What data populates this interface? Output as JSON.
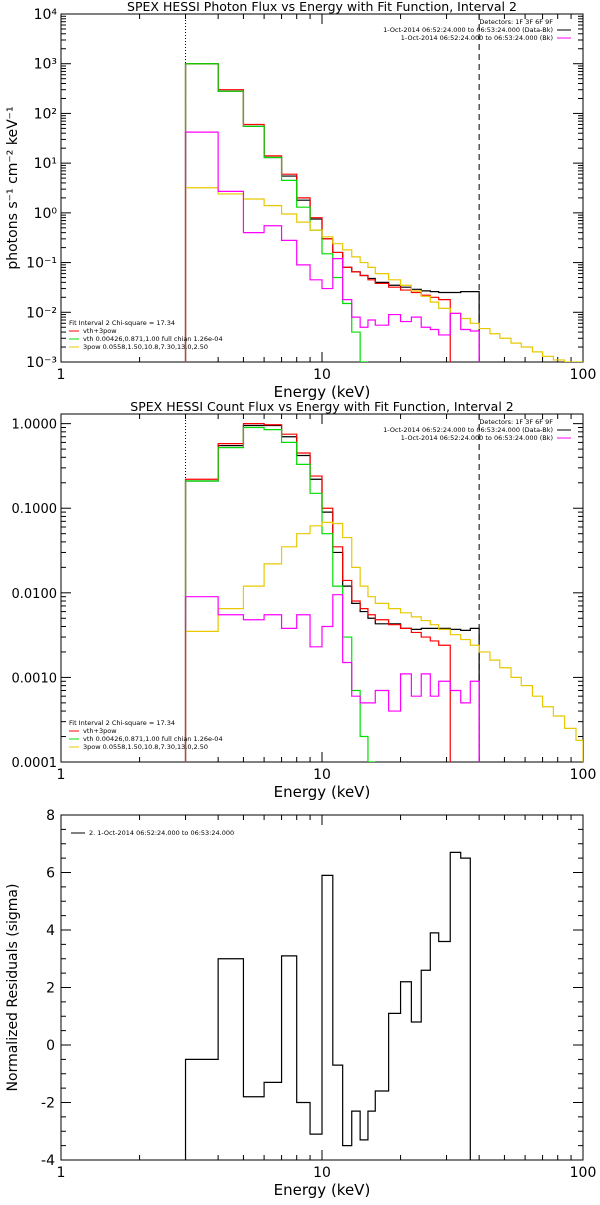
{
  "colors": {
    "total": "#000000",
    "vth_3pow": "#ff0000",
    "vth": "#00dd00",
    "pow": "#e8c800",
    "residual": "#000000",
    "bk": "#ff00ff"
  },
  "chart_data": [
    {
      "type": "line",
      "title": "SPEX HESSI Photon Flux vs Energy with Fit Function, Interval 2",
      "xlabel": "Energy (keV)",
      "ylabel": "photons s⁻¹ cm⁻² keV⁻¹",
      "xscale": "log",
      "yscale": "log",
      "xlim": [
        1,
        100
      ],
      "ylim": [
        0.001,
        10000
      ],
      "xticks": [
        "1",
        "10",
        "100"
      ],
      "yticks": [
        "10⁻³",
        "10⁻²",
        "10⁻¹",
        "10⁰",
        "10¹",
        "10²",
        "10³",
        "10⁴"
      ],
      "vlines": {
        "dotted": 3,
        "dashed": 40
      },
      "legend_top": [
        "Detectors: 1F 3F 6F 9F",
        "1-Oct-2014 06:52:24.000 to 06:53:24.000 (Data-Bk)",
        "1-Oct-2014 06:52:24.000 to 06:53:24.000 (Bk)"
      ],
      "legend_bottom": [
        "Fit Interval  2    Chi-square = 17.34",
        "vth+3pow",
        "vth 0.00426,0.871,1.00  full chian 1.26e-04",
        "3pow 0.0558,1.50,10.8,7.30,13.0,2.50"
      ],
      "edges": [
        3,
        4,
        5,
        6,
        7,
        8,
        9,
        10,
        11,
        12,
        13,
        14,
        15,
        16,
        18,
        20,
        22,
        24,
        26,
        28,
        31,
        34,
        37,
        40,
        44,
        48,
        53,
        58,
        64,
        70,
        77,
        85,
        94,
        100
      ],
      "series": [
        {
          "key": "total",
          "values": [
            1000,
            280,
            55,
            13,
            5.5,
            1.8,
            0.75,
            0.3,
            0.16,
            0.08,
            0.065,
            0.055,
            0.048,
            0.04,
            0.035,
            0.032,
            0.029,
            0.027,
            0.026,
            0.025,
            0.025,
            0.026,
            0.026
          ]
        },
        {
          "key": "vth_3pow",
          "values": [
            1000,
            300,
            60,
            14,
            6,
            2,
            0.8,
            0.3,
            0.16,
            0.08,
            0.065,
            0.055,
            0.045,
            0.038,
            0.032,
            0.028,
            0.025,
            0.022,
            0.02,
            0.018
          ]
        },
        {
          "key": "vth",
          "values": [
            1000,
            280,
            55,
            13,
            4.5,
            1.3,
            0.45,
            0.15,
            0.05,
            0.015,
            0.004,
            0.0008
          ]
        },
        {
          "key": "pow",
          "values": [
            3.2,
            2.4,
            1.9,
            1.4,
            0.95,
            0.65,
            0.45,
            0.33,
            0.24,
            0.18,
            0.13,
            0.1,
            0.08,
            0.06,
            0.045,
            0.035,
            0.027,
            0.021,
            0.016,
            0.012,
            0.0095,
            0.0075,
            0.006,
            0.0047,
            0.0037,
            0.003,
            0.0024,
            0.002,
            0.0016,
            0.0013,
            0.0011,
            0.0009,
            0.0008
          ]
        },
        {
          "key": "bk",
          "values": [
            42,
            2.7,
            0.4,
            0.55,
            0.28,
            0.09,
            0.045,
            0.03,
            0.12,
            0.018,
            0.008,
            0.005,
            0.007,
            0.0055,
            0.009,
            0.0065,
            0.008,
            0.005,
            0.0045,
            0.0035,
            0.0095,
            0.0045,
            0.0042
          ]
        }
      ]
    },
    {
      "type": "line",
      "title": "SPEX HESSI Count Flux vs Energy with Fit Function, Interval 2",
      "xlabel": "Energy (keV)",
      "ylabel": "",
      "xscale": "log",
      "yscale": "log",
      "xlim": [
        1,
        100
      ],
      "ylim": [
        0.0001,
        1.3
      ],
      "xticks": [
        "1",
        "10",
        "100"
      ],
      "yticks": [
        "0.0001",
        "0.0010",
        "0.0100",
        "0.1000",
        "1.0000"
      ],
      "vlines": {
        "dotted": 3,
        "dashed": 40
      },
      "legend_top": [
        "Detectors: 1F 3F 6F 9F",
        "1-Oct-2014 06:52:24.000 to 06:53:24.000 (Data-Bk)",
        "1-Oct-2014 06:52:24.000 to 06:53:24.000 (Bk)"
      ],
      "legend_bottom": [
        "Fit Interval  2    Chi-square = 17.34",
        "vth+3pow",
        "vth 0.00426,0.871,1.00  full chian 1.26e-04",
        "3pow 0.0558,1.50,10.8,7.30,13.0,2.50"
      ],
      "edges": [
        3,
        4,
        5,
        6,
        7,
        8,
        9,
        10,
        11,
        12,
        13,
        14,
        15,
        16,
        18,
        20,
        22,
        24,
        26,
        28,
        31,
        34,
        37,
        40,
        44,
        48,
        53,
        58,
        64,
        70,
        77,
        85,
        94,
        100
      ],
      "series": [
        {
          "key": "total",
          "values": [
            0.21,
            0.55,
            0.95,
            0.95,
            0.7,
            0.42,
            0.22,
            0.09,
            0.03,
            0.012,
            0.0075,
            0.006,
            0.005,
            0.0043,
            0.0043,
            0.0038,
            0.0037,
            0.0038,
            0.0038,
            0.0038,
            0.0037,
            0.0036,
            0.0038
          ]
        },
        {
          "key": "vth_3pow",
          "values": [
            0.22,
            0.58,
            1.0,
            0.97,
            0.75,
            0.45,
            0.24,
            0.1,
            0.035,
            0.014,
            0.008,
            0.0065,
            0.0055,
            0.0048,
            0.0042,
            0.0038,
            0.0034,
            0.003,
            0.0027,
            0.0024
          ]
        },
        {
          "key": "vth",
          "values": [
            0.21,
            0.52,
            0.9,
            0.85,
            0.6,
            0.33,
            0.15,
            0.05,
            0.012,
            0.003,
            0.0007,
            0.0002,
            0.0001
          ]
        },
        {
          "key": "pow",
          "values": [
            0.0035,
            0.0065,
            0.012,
            0.022,
            0.035,
            0.05,
            0.062,
            0.068,
            0.066,
            0.045,
            0.02,
            0.012,
            0.009,
            0.0075,
            0.0065,
            0.0058,
            0.0052,
            0.0047,
            0.0042,
            0.0037,
            0.0032,
            0.0028,
            0.0024,
            0.002,
            0.0016,
            0.0013,
            0.001,
            0.0008,
            0.0006,
            0.00045,
            0.00035,
            0.00025,
            0.00018
          ]
        },
        {
          "key": "bk",
          "values": [
            0.009,
            0.0055,
            0.0048,
            0.0055,
            0.0038,
            0.0055,
            0.0023,
            0.004,
            0.0095,
            0.0015,
            0.0006,
            0.0005,
            0.0005,
            0.0007,
            0.0004,
            0.0011,
            0.0006,
            0.0011,
            0.0006,
            0.0009,
            0.0007,
            0.0005,
            0.0009
          ]
        }
      ]
    },
    {
      "type": "line",
      "title": "",
      "xlabel": "Energy (keV)",
      "ylabel": "Normalized Residuals (sigma)",
      "xscale": "log",
      "yscale": "linear",
      "xlim": [
        1,
        100
      ],
      "ylim": [
        -4,
        8
      ],
      "xticks": [
        "1",
        "10",
        "100"
      ],
      "yticks": [
        "-4",
        "-2",
        "0",
        "2",
        "4",
        "6",
        "8"
      ],
      "legend": "2.  1-Oct-2014 06:52:24.000 to 06:53:24.000",
      "edges": [
        3,
        4,
        5,
        6,
        7,
        8,
        9,
        10,
        11,
        12,
        13,
        14,
        15,
        16,
        18,
        20,
        22,
        24,
        26,
        28,
        31,
        34,
        37,
        40
      ],
      "series": [
        {
          "key": "residual",
          "values": [
            -0.5,
            3.0,
            -1.8,
            -1.3,
            3.1,
            -2.0,
            -3.1,
            5.9,
            -0.7,
            -3.5,
            -2.3,
            -3.3,
            -2.3,
            -1.6,
            1.1,
            2.2,
            0.8,
            2.6,
            3.9,
            3.6,
            6.7,
            6.5
          ]
        }
      ]
    }
  ]
}
